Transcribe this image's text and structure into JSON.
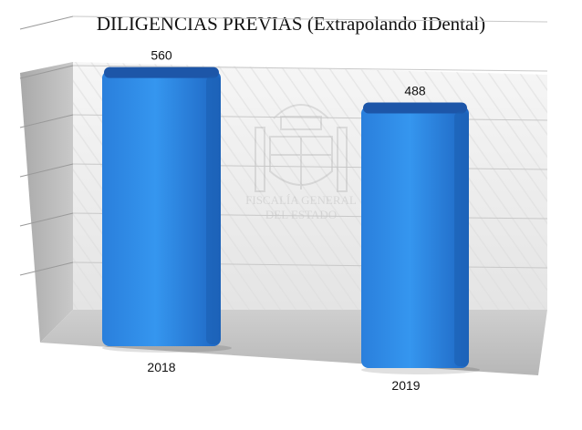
{
  "chart_data": {
    "type": "bar",
    "title": "DILIGENCIAS PREVIAS (Extrapolando IDental)",
    "categories": [
      "2018",
      "2019"
    ],
    "values": [
      560,
      488
    ],
    "ylim": [
      0,
      600
    ],
    "grid": true,
    "legend": "none",
    "colors": {
      "bar": "#2f8ae6",
      "bar_dark": "#1b5fb0",
      "bar_top": "#1d56a8",
      "wall": "#efefef",
      "floor": "#bdbdbd",
      "side_wall": "#b8b8b8"
    },
    "watermark_text": [
      "FISCALÍA GENERAL",
      "DEL ESTADO"
    ]
  }
}
